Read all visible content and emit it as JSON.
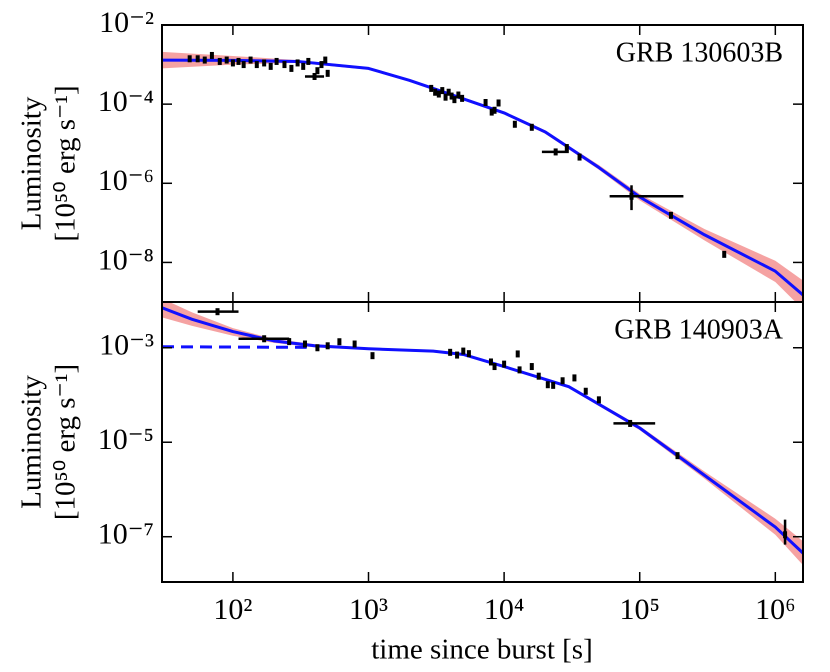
{
  "chart_data": [
    {
      "type": "scatter",
      "log_x": true,
      "log_y": true,
      "annotation": "GRB 130603B",
      "ylabel": "Luminosity",
      "ylabel_unit": "[10⁵⁰ erg s⁻¹]",
      "xlim": [
        30,
        1600000
      ],
      "ylim": [
        1e-09,
        0.01
      ],
      "xticks": [
        100,
        1000,
        10000,
        100000,
        1000000
      ],
      "yticks": [
        {
          "value": 0.01,
          "label": "10⁻²"
        },
        {
          "value": 0.0001,
          "label": "10⁻⁴"
        },
        {
          "value": 1e-06,
          "label": "10⁻⁶"
        },
        {
          "value": 1e-08,
          "label": "10⁻⁸"
        }
      ],
      "point_color": "#000000",
      "points": [
        {
          "x": 48,
          "y": 0.0014
        },
        {
          "x": 55,
          "y": 0.0014
        },
        {
          "x": 62,
          "y": 0.0013
        },
        {
          "x": 70,
          "y": 0.0017
        },
        {
          "x": 80,
          "y": 0.0012
        },
        {
          "x": 90,
          "y": 0.0013
        },
        {
          "x": 100,
          "y": 0.0011
        },
        {
          "x": 110,
          "y": 0.0012
        },
        {
          "x": 120,
          "y": 0.001
        },
        {
          "x": 135,
          "y": 0.0013
        },
        {
          "x": 150,
          "y": 0.001
        },
        {
          "x": 170,
          "y": 0.0011
        },
        {
          "x": 190,
          "y": 0.0009
        },
        {
          "x": 210,
          "y": 0.0012
        },
        {
          "x": 240,
          "y": 0.001
        },
        {
          "x": 270,
          "y": 0.0008
        },
        {
          "x": 300,
          "y": 0.0011
        },
        {
          "x": 330,
          "y": 0.0009
        },
        {
          "x": 360,
          "y": 0.0012
        },
        {
          "x": 400,
          "y": 0.0005,
          "xerr": [
            340,
            470
          ]
        },
        {
          "x": 420,
          "y": 0.0007
        },
        {
          "x": 450,
          "y": 0.001
        },
        {
          "x": 480,
          "y": 0.0013
        },
        {
          "x": 500,
          "y": 0.0006
        },
        {
          "x": 2900,
          "y": 0.00025
        },
        {
          "x": 3100,
          "y": 0.0002
        },
        {
          "x": 3300,
          "y": 0.00018
        },
        {
          "x": 3500,
          "y": 0.00022
        },
        {
          "x": 3700,
          "y": 0.00015
        },
        {
          "x": 3900,
          "y": 0.0002
        },
        {
          "x": 4100,
          "y": 0.00016
        },
        {
          "x": 4300,
          "y": 0.00013
        },
        {
          "x": 4600,
          "y": 0.00017
        },
        {
          "x": 4900,
          "y": 0.00014
        },
        {
          "x": 7300,
          "y": 0.00011
        },
        {
          "x": 8100,
          "y": 6.3e-05
        },
        {
          "x": 8500,
          "y": 7e-05
        },
        {
          "x": 9100,
          "y": 0.000107
        },
        {
          "x": 12000,
          "y": 3.1e-05
        },
        {
          "x": 16000,
          "y": 2.6e-05
        },
        {
          "x": 24000,
          "y": 6.2e-06,
          "xerr": [
            19000,
            30000
          ]
        },
        {
          "x": 29000,
          "y": 8e-06
        },
        {
          "x": 36000,
          "y": 4.6e-06
        },
        {
          "x": 87000,
          "y": 4.7e-07,
          "xerr": [
            60000,
            210000
          ],
          "yerr": [
            2.1e-07,
            8.9e-07
          ]
        },
        {
          "x": 170000,
          "y": 1.55e-07
        },
        {
          "x": 420000,
          "y": 1.6e-08
        }
      ],
      "model": {
        "color": "#1010ff",
        "band_color": "#f07070",
        "x": [
          30,
          100,
          300,
          1000,
          2000,
          3000,
          10000,
          20000,
          30000,
          50000,
          100000,
          300000,
          1000000,
          1600000
        ],
        "values": [
          0.0013,
          0.00128,
          0.0012,
          0.0008,
          0.0004,
          0.00025,
          6e-05,
          2e-05,
          8e-06,
          2.5e-06,
          4.5e-07,
          5e-08,
          6e-09,
          1.5e-09
        ],
        "band_low": [
          0.0008,
          0.001,
          0.0011,
          0.00074,
          0.00037,
          0.00023,
          5.5e-05,
          1.8e-05,
          7.2e-06,
          2.2e-06,
          3.7e-07,
          3.6e-08,
          3.2e-09,
          6.5e-10
        ],
        "band_high": [
          0.0021,
          0.00165,
          0.0013,
          0.00086,
          0.00043,
          0.00027,
          6.5e-05,
          2.2e-05,
          8.8e-06,
          2.9e-06,
          5.4e-07,
          7e-08,
          1.1e-08,
          3.5e-09
        ]
      }
    },
    {
      "type": "scatter",
      "log_x": true,
      "log_y": true,
      "annotation": "GRB 140903A",
      "ylabel": "Luminosity",
      "ylabel_unit": "[10⁵⁰ erg s⁻¹]",
      "xlabel": "time since burst [s]",
      "xlim": [
        30,
        1600000
      ],
      "ylim": [
        1.1e-08,
        0.0093
      ],
      "xticks": [
        {
          "value": 100,
          "label": "10²"
        },
        {
          "value": 1000,
          "label": "10³"
        },
        {
          "value": 10000,
          "label": "10⁴"
        },
        {
          "value": 100000,
          "label": "10⁵"
        },
        {
          "value": 1000000,
          "label": "10⁶"
        }
      ],
      "yticks": [
        {
          "value": 0.001,
          "label": "10⁻³"
        },
        {
          "value": 1e-05,
          "label": "10⁻⁵"
        },
        {
          "value": 1e-07,
          "label": "10⁻⁷"
        }
      ],
      "point_color": "#000000",
      "points": [
        {
          "x": 77,
          "y": 0.0058,
          "xerr": [
            55,
            110
          ]
        },
        {
          "x": 170,
          "y": 0.00155,
          "xerr": [
            110,
            260
          ]
        },
        {
          "x": 260,
          "y": 0.00135
        },
        {
          "x": 340,
          "y": 0.0012
        },
        {
          "x": 420,
          "y": 0.001
        },
        {
          "x": 500,
          "y": 0.0011
        },
        {
          "x": 610,
          "y": 0.00134
        },
        {
          "x": 790,
          "y": 0.0012
        },
        {
          "x": 1070,
          "y": 0.00068
        },
        {
          "x": 4000,
          "y": 0.0008
        },
        {
          "x": 4500,
          "y": 0.0007
        },
        {
          "x": 5000,
          "y": 0.00085
        },
        {
          "x": 5500,
          "y": 0.00075
        },
        {
          "x": 8000,
          "y": 0.0005
        },
        {
          "x": 8500,
          "y": 0.0004
        },
        {
          "x": 10000,
          "y": 0.00045
        },
        {
          "x": 12600,
          "y": 0.00074
        },
        {
          "x": 13000,
          "y": 0.00034
        },
        {
          "x": 16000,
          "y": 0.0004
        },
        {
          "x": 18000,
          "y": 0.00025
        },
        {
          "x": 21000,
          "y": 0.000165
        },
        {
          "x": 23000,
          "y": 0.00016
        },
        {
          "x": 27000,
          "y": 0.0002
        },
        {
          "x": 33000,
          "y": 0.00023
        },
        {
          "x": 40000,
          "y": 0.00012
        },
        {
          "x": 50000,
          "y": 7.9e-05
        },
        {
          "x": 85000,
          "y": 2.5e-05,
          "xerr": [
            64000,
            130000
          ]
        },
        {
          "x": 190000,
          "y": 5.2e-06
        },
        {
          "x": 1180000,
          "y": 1.1e-07,
          "yerr": [
            6.8e-08,
            2.3e-07
          ]
        }
      ],
      "model": {
        "color": "#1010ff",
        "band_color": "#f07070",
        "x": [
          30,
          50,
          100,
          200,
          400,
          1000,
          3000,
          5000,
          10000,
          30000,
          100000,
          300000,
          1000000,
          1600000
        ],
        "values": [
          0.007,
          0.004,
          0.0022,
          0.0014,
          0.0011,
          0.00095,
          0.00085,
          0.00072,
          0.0004,
          0.00015,
          2e-05,
          2e-06,
          1.6e-07,
          4.5e-08
        ],
        "band_low": [
          0.0044,
          0.0029,
          0.0018,
          0.00127,
          0.00102,
          0.0009,
          0.0008,
          0.00068,
          0.00038,
          0.00014,
          1.8e-05,
          1.7e-06,
          1.1e-07,
          2.5e-08
        ],
        "band_high": [
          0.011,
          0.0056,
          0.0026,
          0.00154,
          0.00119,
          0.001,
          0.0009,
          0.00076,
          0.00042,
          0.00016,
          2.2e-05,
          2.4e-06,
          2.4e-07,
          8e-08
        ]
      },
      "plateau": {
        "color": "#1010ff",
        "dashed": true,
        "x": [
          30,
          350
        ],
        "values": [
          0.00105,
          0.00102
        ]
      }
    }
  ]
}
